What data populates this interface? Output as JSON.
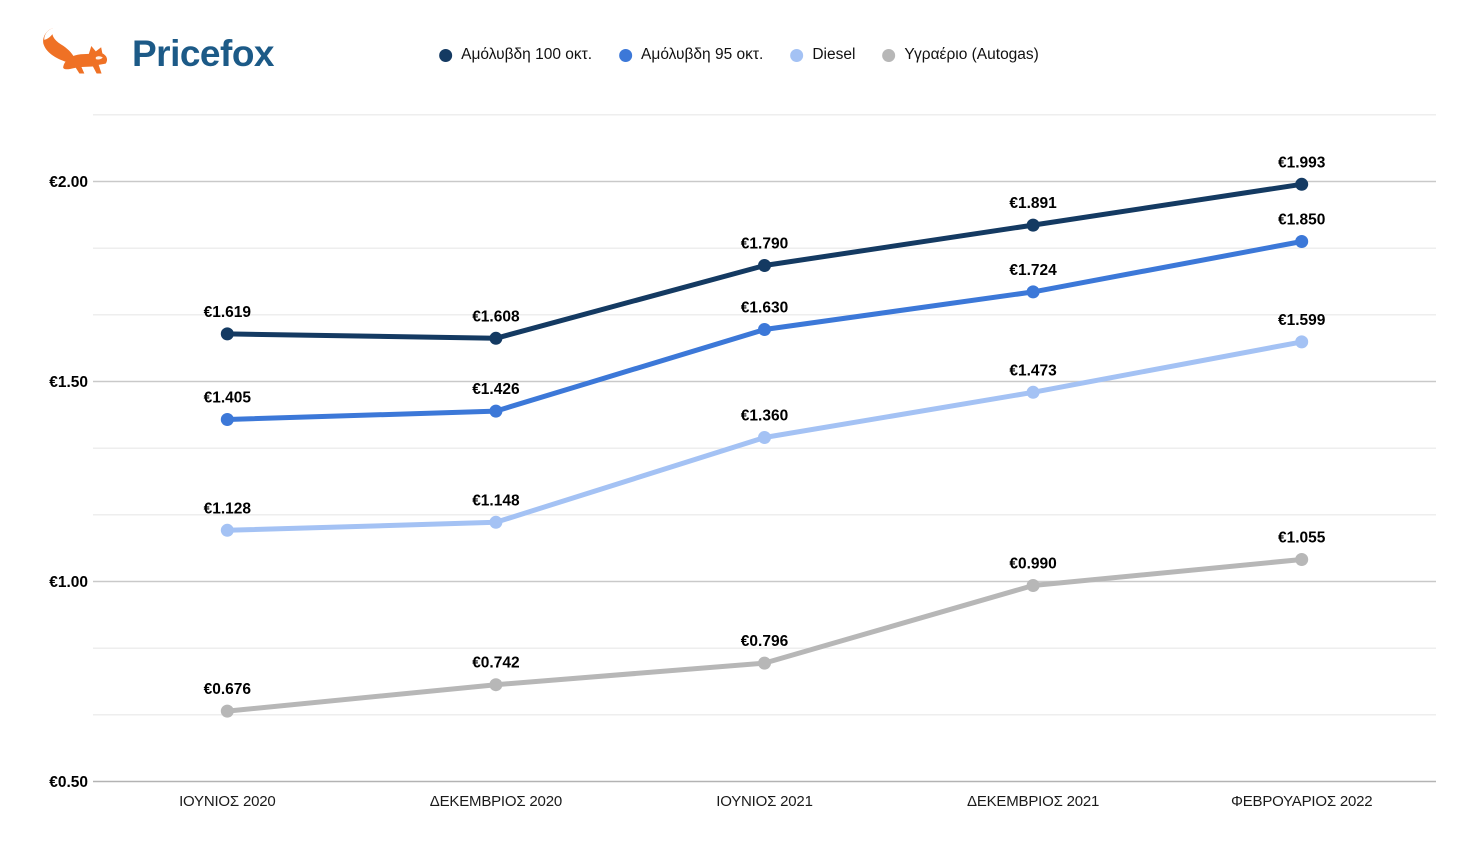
{
  "brand": {
    "name": "Pricefox",
    "orange": "#ef7125",
    "blue": "#1c5a87"
  },
  "chart_data": {
    "type": "line",
    "title": "",
    "xlabel": "",
    "ylabel": "",
    "legend_position": "top",
    "grid": true,
    "currency_symbol": "€",
    "categories": [
      "ΙΟΥΝΙΟΣ 2020",
      "ΔΕΚΕΜΒΡΙΟΣ 2020",
      "ΙΟΥΝΙΟΣ 2021",
      "ΔΕΚΕΜΒΡΙΟΣ 2021",
      "ΦΕΒΡΟΥΑΡΙΟΣ 2022"
    ],
    "series": [
      {
        "id": "unleaded-100",
        "name": "Αμόλυβδη 100 οκτ.",
        "color": "#143a62",
        "values": [
          1.619,
          1.608,
          1.79,
          1.891,
          1.993
        ],
        "labels": [
          "€1.619",
          "€1.608",
          "€1.790",
          "€1.891",
          "€1.993"
        ]
      },
      {
        "id": "unleaded-95",
        "name": "Αμόλυβδη 95 οκτ.",
        "color": "#3c78d8",
        "values": [
          1.405,
          1.426,
          1.63,
          1.724,
          1.85
        ],
        "labels": [
          "€1.405",
          "€1.426",
          "€1.630",
          "€1.724",
          "€1.850"
        ]
      },
      {
        "id": "diesel",
        "name": "Diesel",
        "color": "#a4c2f4",
        "values": [
          1.128,
          1.148,
          1.36,
          1.473,
          1.599
        ],
        "labels": [
          "€1.128",
          "€1.148",
          "€1.360",
          "€1.473",
          "€1.599"
        ]
      },
      {
        "id": "autogas",
        "name": "Υγραέριο (Autogas)",
        "color": "#b7b7b7",
        "values": [
          0.676,
          0.742,
          0.796,
          0.99,
          1.055
        ],
        "labels": [
          "€0.676",
          "€0.742",
          "€0.796",
          "€0.990",
          "€1.055"
        ]
      }
    ],
    "y_axis": {
      "range": [
        0.5,
        2.1667
      ],
      "major_tick_step": 0.5,
      "minor_gridline_step": 0.1667,
      "ticks": [
        {
          "value": 0.5,
          "label": "€0.50"
        },
        {
          "value": 1.0,
          "label": "€1.00"
        },
        {
          "value": 1.5,
          "label": "€1.50"
        },
        {
          "value": 2.0,
          "label": "€2.00"
        }
      ]
    }
  }
}
